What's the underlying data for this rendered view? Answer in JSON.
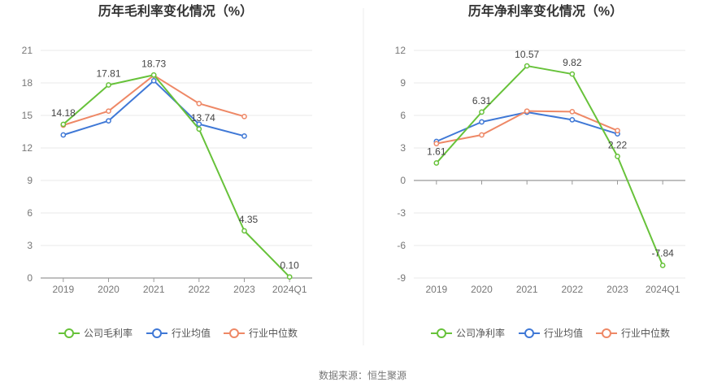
{
  "source": "数据来源：恒生聚源",
  "chart_data": [
    {
      "type": "line",
      "title": "历年毛利率变化情况（%）",
      "categories": [
        "2019",
        "2020",
        "2021",
        "2022",
        "2023",
        "2024Q1"
      ],
      "ylim": [
        0,
        21
      ],
      "yticks": [
        "21",
        "18",
        "15",
        "12",
        "9",
        "6",
        "3",
        "0"
      ],
      "series": [
        {
          "name": "公司毛利率",
          "color": "#67c23a",
          "values": [
            14.18,
            17.81,
            18.73,
            13.74,
            4.35,
            0.1
          ],
          "labels": [
            "14.18",
            "17.81",
            "18.73",
            "13.74",
            "4.35",
            "0.10"
          ]
        },
        {
          "name": "行业均值",
          "color": "#3f78d6",
          "values": [
            13.2,
            14.5,
            18.2,
            14.2,
            13.1,
            null
          ]
        },
        {
          "name": "行业中位数",
          "color": "#ee8866",
          "values": [
            14.1,
            15.4,
            18.7,
            16.1,
            14.9,
            null
          ]
        }
      ],
      "grid": true,
      "legend": "bottom"
    },
    {
      "type": "line",
      "title": "历年净利率变化情况（%）",
      "categories": [
        "2019",
        "2020",
        "2021",
        "2022",
        "2023",
        "2024Q1"
      ],
      "ylim": [
        -9,
        12
      ],
      "yticks": [
        "12",
        "9",
        "6",
        "3",
        "0",
        "-3",
        "-6",
        "-9"
      ],
      "series": [
        {
          "name": "公司净利率",
          "color": "#67c23a",
          "values": [
            1.61,
            6.31,
            10.57,
            9.82,
            2.22,
            -7.84
          ],
          "labels": [
            "1.61",
            "6.31",
            "10.57",
            "9.82",
            "2.22",
            "-7.84"
          ]
        },
        {
          "name": "行业均值",
          "color": "#3f78d6",
          "values": [
            3.6,
            5.4,
            6.3,
            5.6,
            4.3,
            null
          ]
        },
        {
          "name": "行业中位数",
          "color": "#ee8866",
          "values": [
            3.4,
            4.2,
            6.4,
            6.35,
            4.6,
            null
          ]
        }
      ],
      "grid": true,
      "legend": "bottom"
    }
  ]
}
